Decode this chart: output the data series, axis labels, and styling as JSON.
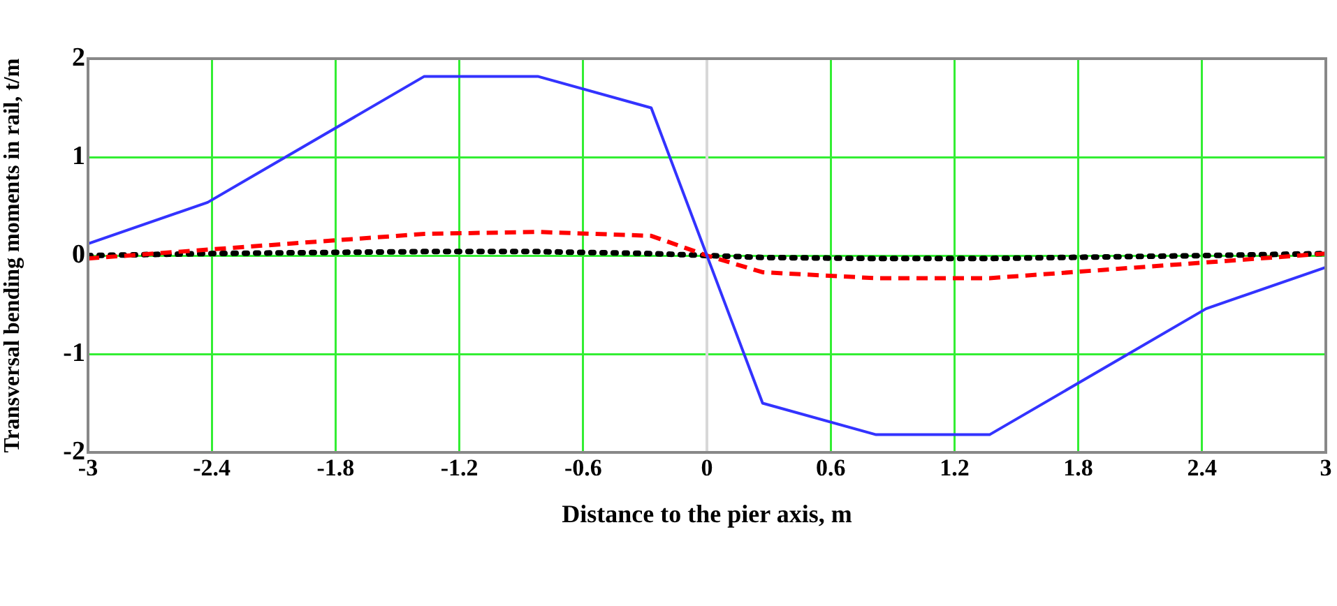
{
  "chart_data": {
    "type": "line",
    "xlabel": "Distance to the pier axis, m",
    "ylabel": "Transversal bending moments in rail, t/m",
    "x": [
      -3,
      -2.42,
      -1.37,
      -0.82,
      -0.27,
      0,
      0.27,
      0.82,
      1.37,
      2.42,
      3
    ],
    "series": [
      {
        "color": "#3333ff",
        "line_style": "solid",
        "values": [
          0.12,
          0.54,
          1.82,
          1.82,
          1.5,
          0,
          -1.5,
          -1.82,
          -1.82,
          -0.54,
          -0.12
        ]
      },
      {
        "color": "#ff0000",
        "line_style": "dashed",
        "values": [
          -0.03,
          0.06,
          0.22,
          0.24,
          0.2,
          0,
          -0.17,
          -0.23,
          -0.23,
          -0.07,
          0.02
        ]
      },
      {
        "color": "#000000",
        "line_style": "dotted",
        "values": [
          0,
          0.02,
          0.04,
          0.04,
          0.02,
          0,
          -0.02,
          -0.03,
          -0.03,
          0,
          0.02
        ]
      }
    ],
    "xlim": [
      -3,
      3
    ],
    "xticks": [
      -3,
      -2.4,
      -1.8,
      -1.2,
      -0.6,
      0,
      0.6,
      1.2,
      1.8,
      2.4,
      3
    ],
    "ylim": [
      -2,
      2
    ],
    "yticks": [
      -2,
      -1,
      0,
      1,
      2
    ],
    "ref_lines": [
      {
        "axis": "x",
        "value": 0,
        "color": "#d8d8d8"
      }
    ],
    "grid": true,
    "legend": false,
    "marker": "none"
  }
}
